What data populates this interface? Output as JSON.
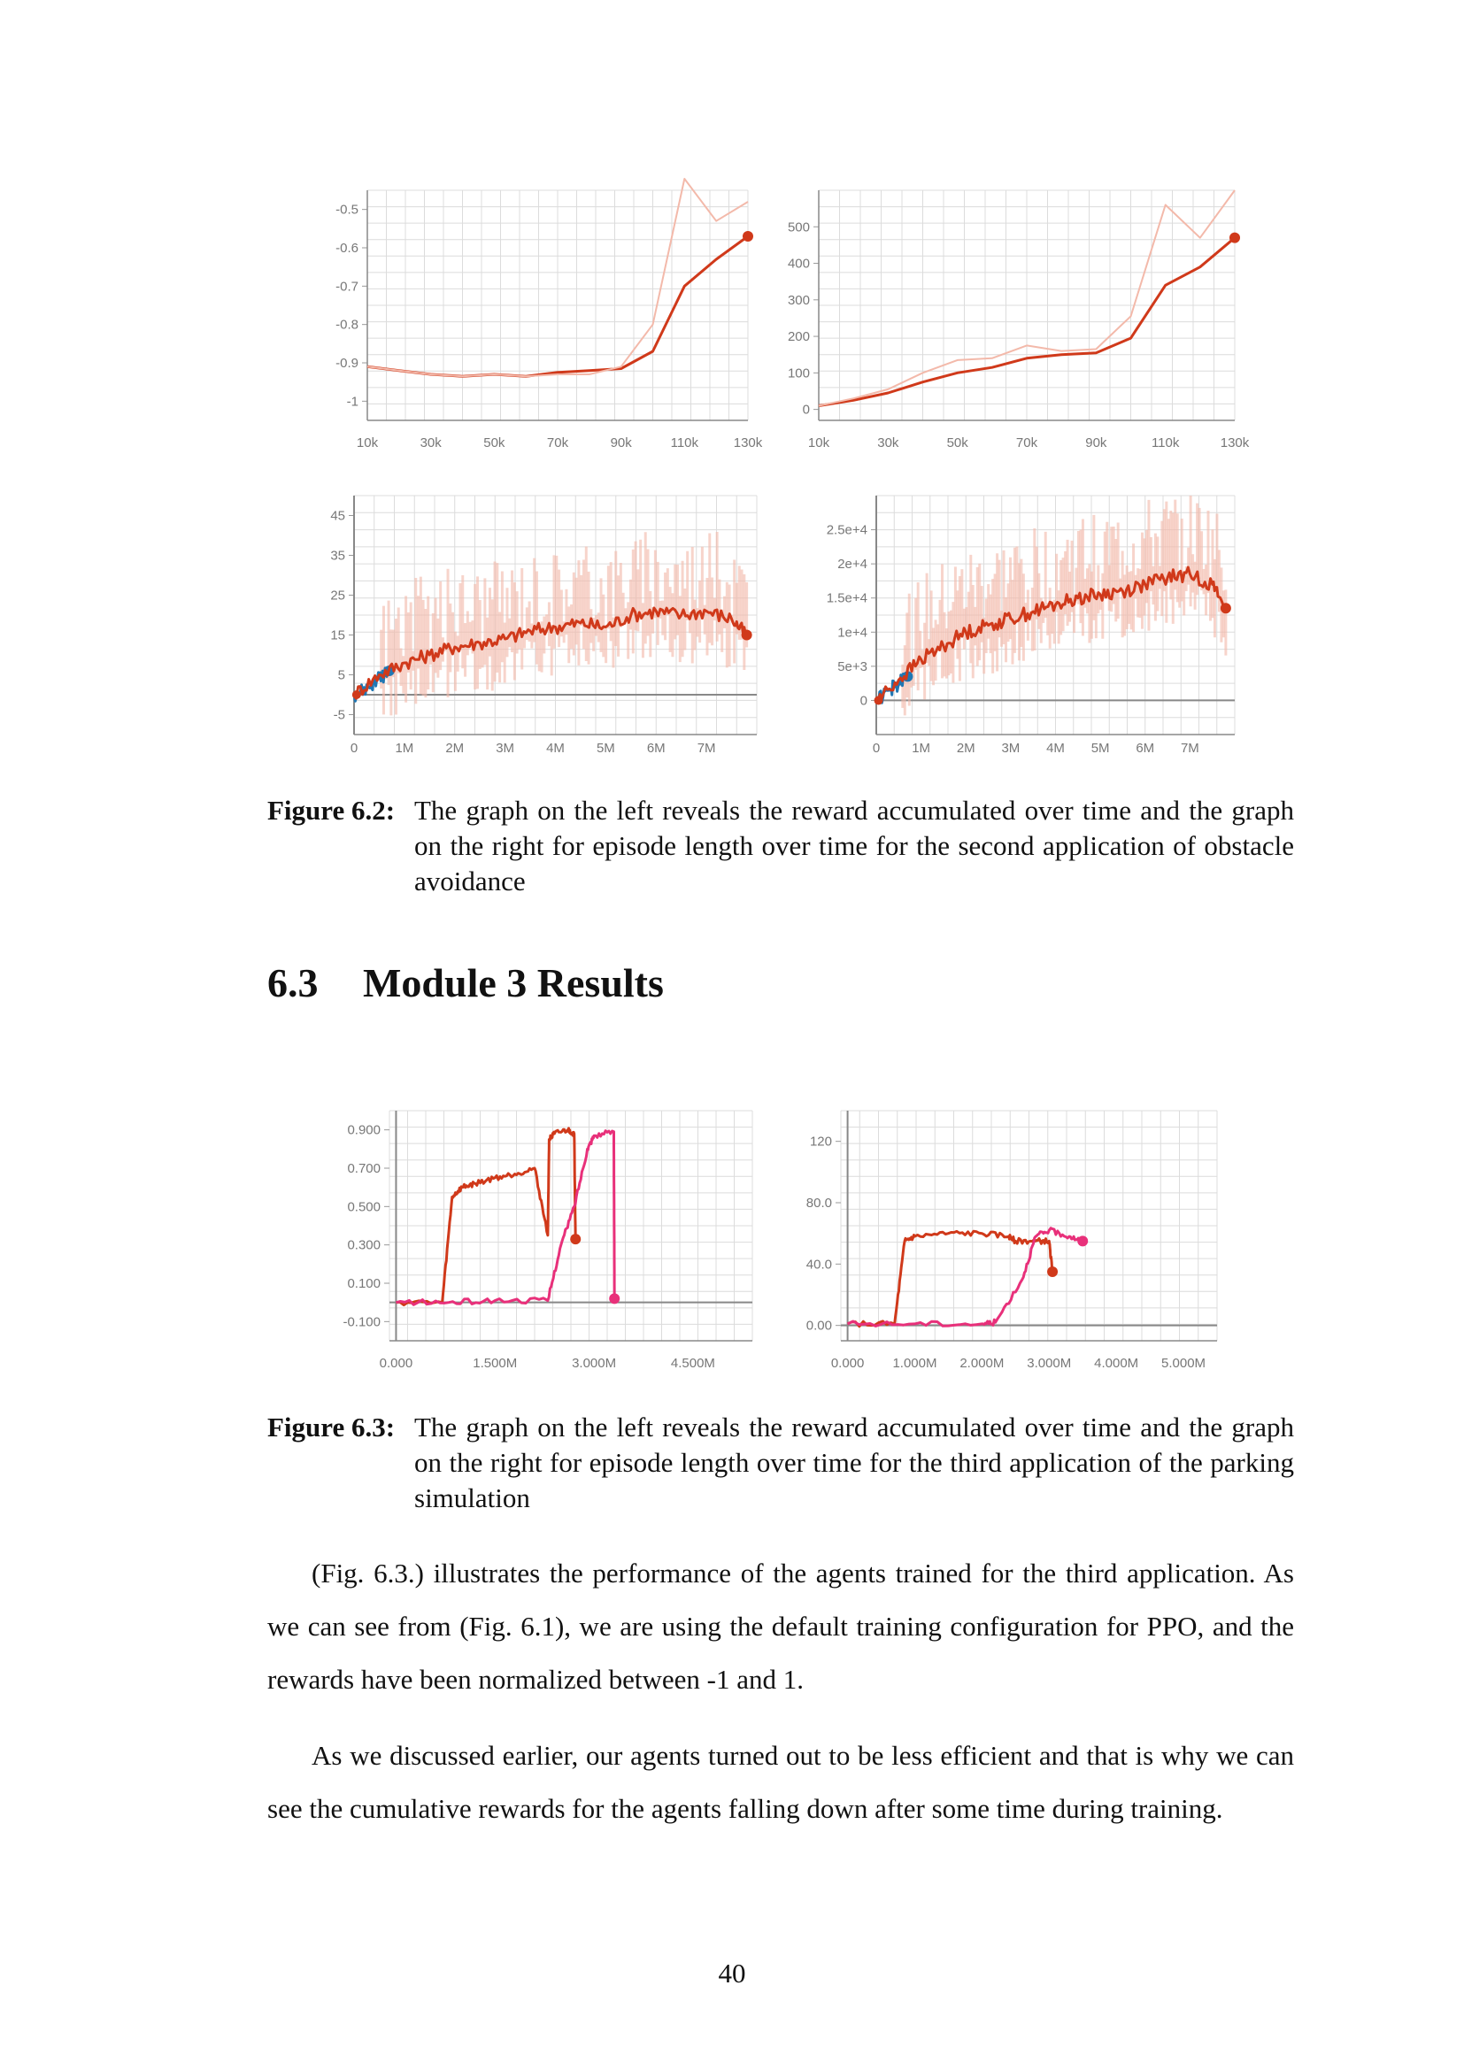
{
  "figure_6_2": {
    "label": "Figure 6.2:",
    "text": "The graph on the left reveals the reward accumulated over time and the graph on the right for episode length over time for the second application of obstacle avoidance"
  },
  "section": {
    "number": "6.3",
    "title": "Module 3 Results"
  },
  "figure_6_3": {
    "label": "Figure 6.3:",
    "text": "The graph on the left reveals the reward accumulated over time and the graph on the right for episode length over time for the third application of the parking simulation"
  },
  "paragraphs": [
    "(Fig. 6.3.) illustrates the performance of the agents trained for the third application. As we can see from (Fig. 6.1), we are using the default training configuration for PPO, and the rewards have been normalized between -1 and 1.",
    "As we discussed earlier, our agents turned out to be less efficient and that is why we can see the cumulative rewards for the agents falling down after some time during training."
  ],
  "page_number": "40",
  "colors": {
    "series_main": "#d0391a",
    "series_faint": "#f3b9aa",
    "series_blue": "#1f77b4",
    "series_pink": "#e8307a",
    "grid": "#dcdcdc"
  },
  "chart_data": [
    {
      "type": "line",
      "x": [
        "10k",
        "20k",
        "30k",
        "40k",
        "50k",
        "60k",
        "70k",
        "80k",
        "90k",
        "100k",
        "110k",
        "120k",
        "130k"
      ],
      "xticks": [
        "10k",
        "30k",
        "50k",
        "70k",
        "90k",
        "110k",
        "130k"
      ],
      "yticks": [
        "-0.5",
        "-0.6",
        "-0.7",
        "-0.8",
        "-0.9",
        "-1"
      ],
      "ylim": [
        -1.05,
        -0.45
      ],
      "series": [
        {
          "values": [
            -0.91,
            -0.92,
            -0.93,
            -0.935,
            -0.93,
            -0.935,
            -0.925,
            -0.92,
            -0.915,
            -0.87,
            -0.7,
            -0.63,
            -0.57
          ]
        },
        {
          "values": [
            -0.91,
            -0.92,
            -0.93,
            -0.935,
            -0.93,
            -0.935,
            -0.93,
            -0.93,
            -0.91,
            -0.8,
            -0.42,
            -0.53,
            -0.48
          ]
        }
      ]
    },
    {
      "type": "line",
      "x": [
        "10k",
        "20k",
        "30k",
        "40k",
        "50k",
        "60k",
        "70k",
        "80k",
        "90k",
        "100k",
        "110k",
        "120k",
        "130k"
      ],
      "xticks": [
        "10k",
        "30k",
        "50k",
        "70k",
        "90k",
        "110k",
        "130k"
      ],
      "yticks": [
        "500",
        "400",
        "300",
        "200",
        "100",
        "0"
      ],
      "ylim": [
        -30,
        600
      ],
      "series": [
        {
          "values": [
            10,
            25,
            45,
            75,
            100,
            115,
            140,
            150,
            155,
            195,
            340,
            390,
            470
          ]
        },
        {
          "values": [
            10,
            30,
            55,
            100,
            135,
            140,
            175,
            160,
            165,
            255,
            560,
            470,
            600
          ]
        }
      ]
    },
    {
      "type": "line",
      "xticks": [
        "0",
        "1M",
        "2M",
        "3M",
        "4M",
        "5M",
        "6M",
        "7M"
      ],
      "yticks": [
        "45",
        "35",
        "25",
        "15",
        "5",
        "-5"
      ],
      "xlim": [
        0,
        8
      ],
      "ylim": [
        -10,
        50
      ],
      "series": [
        {
          "x": [
            0,
            0.3,
            0.5,
            0.7
          ],
          "values": [
            0,
            2,
            4,
            6
          ]
        },
        {
          "x": [
            0,
            0.5,
            1,
            1.5,
            2,
            2.5,
            3,
            3.5,
            4,
            4.5,
            5,
            5.5,
            6,
            6.5,
            7,
            7.5,
            7.8
          ],
          "values": [
            0,
            5,
            8,
            10,
            12,
            13,
            14,
            16,
            17,
            18,
            17,
            20,
            21,
            20,
            21,
            19,
            15
          ]
        }
      ]
    },
    {
      "type": "line",
      "xticks": [
        "0",
        "1M",
        "2M",
        "3M",
        "4M",
        "5M",
        "6M",
        "7M"
      ],
      "yticks": [
        "2.5e+4",
        "2e+4",
        "1.5e+4",
        "1e+4",
        "5e+3",
        "0"
      ],
      "xlim": [
        0,
        8
      ],
      "ylim": [
        -5000,
        30000
      ],
      "series": [
        {
          "x": [
            0,
            0.3,
            0.5,
            0.7
          ],
          "values": [
            0,
            1500,
            2500,
            3500
          ]
        },
        {
          "x": [
            0,
            0.5,
            1,
            1.5,
            2,
            2.5,
            3,
            3.5,
            4,
            4.5,
            5,
            5.5,
            6,
            6.5,
            7,
            7.5,
            7.8
          ],
          "values": [
            0,
            3000,
            6000,
            8000,
            10000,
            11000,
            12000,
            13000,
            14000,
            15000,
            15500,
            16000,
            17000,
            18000,
            18500,
            17000,
            13500
          ]
        }
      ]
    },
    {
      "type": "line",
      "xticks": [
        "0.000",
        "1.500M",
        "3.000M",
        "4.500M"
      ],
      "yticks": [
        "0.900",
        "0.700",
        "0.500",
        "0.300",
        "0.100",
        "-0.100"
      ],
      "xlim": [
        -0.1,
        5.4
      ],
      "ylim": [
        -0.2,
        1.0
      ],
      "series": [
        {
          "x": [
            0,
            0.7,
            0.85,
            1.0,
            1.2,
            1.5,
            1.8,
            2.1,
            2.3,
            2.32,
            2.4,
            2.6,
            2.7,
            2.72
          ],
          "values": [
            0,
            0,
            0.55,
            0.6,
            0.62,
            0.65,
            0.67,
            0.7,
            0.35,
            0.85,
            0.88,
            0.9,
            0.88,
            0.33
          ]
        },
        {
          "x": [
            0,
            0.8,
            1.5,
            2.3,
            2.5,
            2.7,
            2.9,
            3.0,
            3.3,
            3.31
          ],
          "values": [
            0,
            0,
            0.01,
            0.01,
            0.3,
            0.5,
            0.8,
            0.87,
            0.89,
            0.02
          ]
        }
      ]
    },
    {
      "type": "line",
      "xticks": [
        "0.000",
        "1.000M",
        "2.000M",
        "3.000M",
        "4.000M",
        "5.000M"
      ],
      "yticks": [
        "120",
        "80.0",
        "40.0",
        "0.00"
      ],
      "xlim": [
        -0.1,
        5.5
      ],
      "ylim": [
        -10,
        140
      ],
      "series": [
        {
          "x": [
            0,
            0.7,
            0.85,
            1.0,
            1.5,
            2.0,
            2.4,
            2.5,
            2.8,
            3.0,
            3.05
          ],
          "values": [
            1,
            1,
            55,
            58,
            60,
            60,
            58,
            55,
            55,
            55,
            35
          ]
        },
        {
          "x": [
            0,
            1.0,
            2.0,
            2.2,
            2.6,
            2.8,
            3.0,
            3.3,
            3.5
          ],
          "values": [
            1,
            1,
            1,
            2,
            30,
            58,
            62,
            58,
            55
          ]
        }
      ]
    }
  ]
}
